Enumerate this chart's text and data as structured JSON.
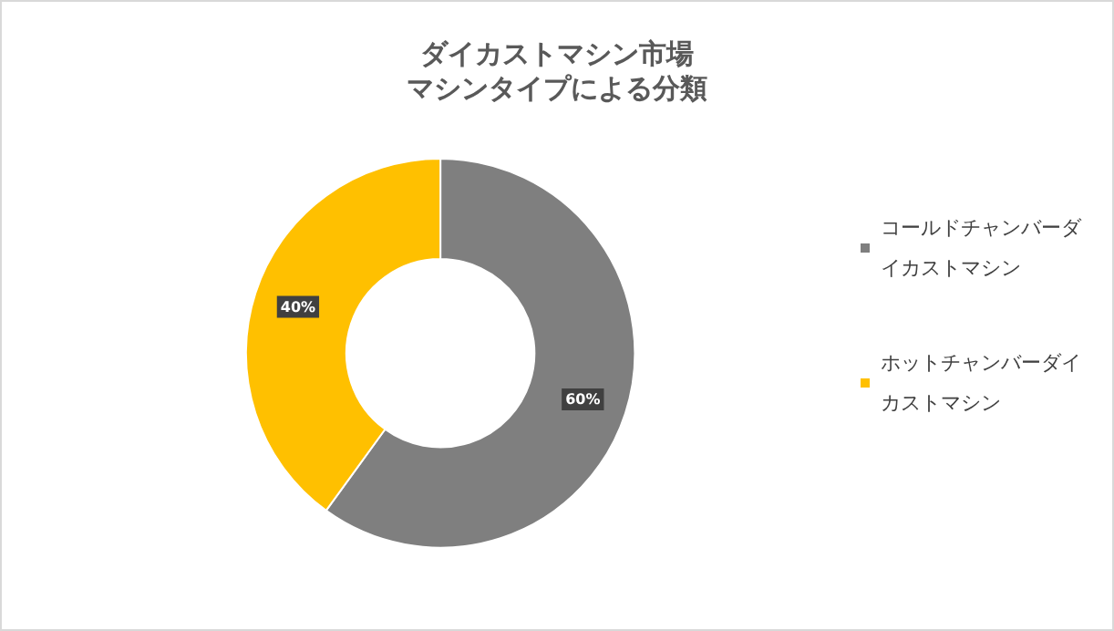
{
  "chart_data": {
    "type": "donut",
    "title": "ダイカストマシン市場",
    "subtitle": "マシンタイプによる分類",
    "categories": [
      "コールドチャンバーダイカストマシン",
      "ホットチャンバーダイカストマシン"
    ],
    "values": [
      60,
      40
    ],
    "colors": [
      "#7f7f7f",
      "#ffc000"
    ],
    "value_labels": [
      "60%",
      "40%"
    ],
    "legend": "right"
  }
}
